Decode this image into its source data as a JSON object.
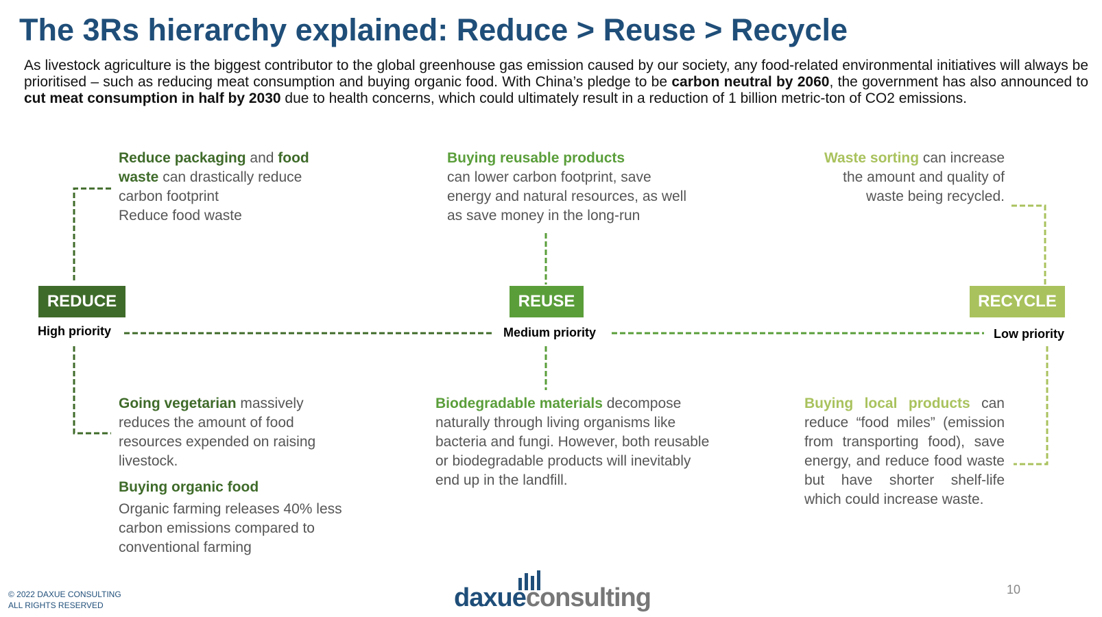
{
  "title": "The 3Rs hierarchy explained: Reduce > Reuse > Recycle",
  "intro": [
    "As livestock agriculture is the biggest contributor to the global greenhouse gas emission caused by our society, any food-related environmental initiatives will always be prioritised – such as reducing meat consumption and buying organic food.  With China’s pledge to be ",
    "carbon neutral by 2060",
    ", the government has also announced to ",
    "cut meat consumption in half by 2030",
    " due to health concerns, which could ultimately result in a reduction of 1 billion metric-ton of CO2 emissions."
  ],
  "stages": [
    {
      "label": "REDUCE",
      "priority": "High priority",
      "top": [
        "Reduce packaging",
        " and ",
        "food waste",
        " can drastically reduce carbon footprint",
        "Reduce food waste"
      ],
      "bottom": [
        "Going vegetarian",
        " massively reduces the amount of food resources expended on raising livestock.",
        "Buying organic food",
        "Organic  farming releases 40% less carbon emissions compared to conventional farming"
      ]
    },
    {
      "label": "REUSE",
      "priority": "Medium priority",
      "top": [
        "Buying reusable products",
        "can lower carbon footprint, save energy and natural resources, as well as save money in the long-run"
      ],
      "bottom": [
        "Biodegradable materials",
        " decompose naturally through living organisms like bacteria and fungi. However, both reusable or biodegradable products will inevitably end up in the landfill."
      ]
    },
    {
      "label": "RECYCLE",
      "priority": "Low priority",
      "top": [
        "Waste sorting",
        " can increase the amount and quality of waste being recycled."
      ],
      "bottom": [
        "Buying local products",
        " can reduce “food miles” (emission from transporting food), save energy, and reduce food waste but have shorter shelf-life which could increase waste."
      ]
    }
  ],
  "footer": {
    "copyright": [
      "© 2022 DAXUE CONSULTING",
      "ALL RIGHTS RESERVED"
    ],
    "logo": [
      "daxue",
      "consulting"
    ],
    "page": "10"
  }
}
